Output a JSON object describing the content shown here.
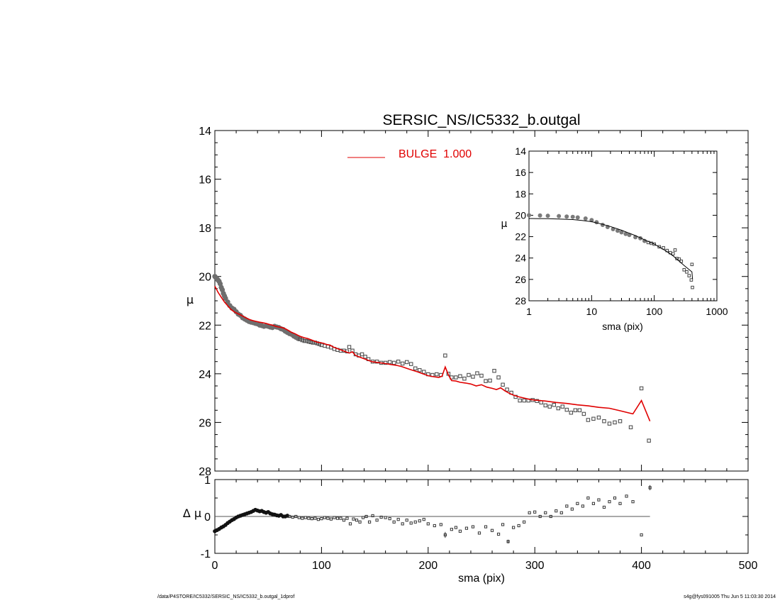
{
  "chart_data": {
    "type": "scatter",
    "title": "SERSIC_NS/IC5332_b.outgal",
    "colors": {
      "model": "#e00000",
      "data": "#505050",
      "axes": "#000000"
    },
    "main": {
      "xlabel": "sma (pix)",
      "ylabel": "μ",
      "xlim": [
        0,
        500
      ],
      "ylim": [
        28,
        14
      ],
      "y_inverted": true,
      "xticks": [
        0,
        100,
        200,
        300,
        400,
        500
      ],
      "yticks": [
        14,
        16,
        18,
        20,
        22,
        24,
        26,
        28
      ],
      "legend": {
        "label": "BULGE  1.000",
        "placement": "top-center"
      },
      "series": [
        {
          "kind": "model-line",
          "x": [
            0,
            3,
            6,
            9,
            12,
            15,
            18,
            21,
            24,
            27,
            30,
            33,
            36,
            39,
            42,
            45,
            48,
            51,
            54,
            57,
            60,
            63,
            66,
            69,
            72,
            75,
            78,
            81,
            84,
            87,
            90,
            93,
            96,
            99,
            102,
            105,
            108,
            111,
            114,
            117,
            120,
            123,
            126,
            129,
            132,
            135,
            138,
            141,
            144,
            147,
            150,
            155,
            160,
            165,
            170,
            175,
            180,
            185,
            190,
            195,
            200,
            205,
            210,
            213,
            216,
            219,
            222,
            226,
            230,
            235,
            240,
            245,
            250,
            255,
            260,
            264,
            268,
            272,
            276,
            280,
            285,
            290,
            295,
            300,
            310,
            320,
            330,
            340,
            350,
            360,
            370,
            380,
            392,
            400,
            408
          ],
          "y": [
            20.4,
            20.65,
            20.85,
            21.05,
            21.2,
            21.35,
            21.45,
            21.52,
            21.58,
            21.65,
            21.72,
            21.78,
            21.82,
            21.85,
            21.88,
            21.9,
            21.93,
            21.97,
            22.0,
            22.05,
            22.08,
            22.1,
            22.15,
            22.22,
            22.3,
            22.35,
            22.42,
            22.48,
            22.52,
            22.55,
            22.6,
            22.65,
            22.7,
            22.72,
            22.75,
            22.8,
            22.82,
            22.9,
            22.95,
            23.0,
            23.05,
            23.1,
            23.15,
            23.1,
            23.25,
            23.3,
            23.35,
            23.4,
            23.45,
            23.5,
            23.52,
            23.55,
            23.58,
            23.62,
            23.65,
            23.7,
            23.78,
            23.85,
            23.92,
            24.0,
            24.08,
            24.12,
            24.15,
            24.1,
            23.72,
            24.05,
            24.28,
            24.3,
            24.35,
            24.38,
            24.42,
            24.5,
            24.45,
            24.55,
            24.6,
            24.65,
            24.58,
            24.7,
            24.8,
            24.88,
            24.95,
            25.0,
            25.05,
            25.08,
            25.12,
            25.18,
            25.22,
            25.28,
            25.32,
            25.38,
            25.42,
            25.52,
            25.65,
            25.1,
            25.95
          ]
        },
        {
          "kind": "data-points",
          "x": [
            0,
            1,
            2,
            3,
            4,
            5,
            6,
            7,
            8,
            9,
            10,
            12,
            14,
            16,
            18,
            20,
            22,
            24,
            26,
            28,
            30,
            32,
            34,
            36,
            38,
            40,
            42,
            44,
            46,
            48,
            50,
            52,
            54,
            56,
            58,
            60,
            62,
            64,
            66,
            68,
            70,
            72,
            74,
            76,
            78,
            80,
            82,
            84,
            86,
            88,
            90,
            92,
            94,
            96,
            98,
            100,
            103,
            106,
            109,
            112,
            115,
            118,
            121,
            124,
            126,
            129,
            132,
            135,
            138,
            141,
            144,
            148,
            152,
            156,
            160,
            164,
            168,
            172,
            176,
            180,
            184,
            188,
            192,
            196,
            200,
            204,
            208,
            212,
            216,
            219,
            222,
            226,
            230,
            234,
            238,
            242,
            246,
            250,
            254,
            258,
            262,
            266,
            270,
            274,
            278,
            282,
            286,
            290,
            294,
            298,
            302,
            306,
            310,
            314,
            318,
            322,
            326,
            330,
            334,
            338,
            342,
            346,
            350,
            355,
            360,
            365,
            370,
            375,
            380,
            390,
            400,
            407
          ],
          "y": [
            20.0,
            20.05,
            20.1,
            20.15,
            20.2,
            20.3,
            20.45,
            20.55,
            20.7,
            20.8,
            20.9,
            21.05,
            21.2,
            21.3,
            21.35,
            21.45,
            21.55,
            21.6,
            21.7,
            21.75,
            21.8,
            21.85,
            21.88,
            21.9,
            21.93,
            21.95,
            22.0,
            22.02,
            22.05,
            22.03,
            22.05,
            22.08,
            22.1,
            22.05,
            22.08,
            22.1,
            22.15,
            22.18,
            22.25,
            22.3,
            22.35,
            22.38,
            22.45,
            22.5,
            22.55,
            22.58,
            22.62,
            22.65,
            22.65,
            22.68,
            22.7,
            22.72,
            22.72,
            22.75,
            22.78,
            22.82,
            22.85,
            22.88,
            22.92,
            22.98,
            23.02,
            23.05,
            23.05,
            23.08,
            22.9,
            23.05,
            23.2,
            23.25,
            23.2,
            23.3,
            23.4,
            23.5,
            23.5,
            23.55,
            23.55,
            23.52,
            23.55,
            23.5,
            23.58,
            23.52,
            23.6,
            23.78,
            23.85,
            23.92,
            24.02,
            24.05,
            24.02,
            24.05,
            23.25,
            24.0,
            24.15,
            24.15,
            24.1,
            24.2,
            24.05,
            24.12,
            23.98,
            24.08,
            24.3,
            24.28,
            23.88,
            24.15,
            24.45,
            24.65,
            24.78,
            24.95,
            25.1,
            25.1,
            25.1,
            25.08,
            25.12,
            25.18,
            25.3,
            25.35,
            25.28,
            25.42,
            25.35,
            25.48,
            25.6,
            25.5,
            25.5,
            25.65,
            25.9,
            25.85,
            25.8,
            25.95,
            26.05,
            26.0,
            25.95,
            26.2,
            24.6,
            26.75
          ]
        }
      ]
    },
    "inset": {
      "xlabel": "sma (pix)",
      "ylabel": "μ",
      "xscale": "log",
      "xlim": [
        1,
        1000
      ],
      "ylim": [
        28,
        14
      ],
      "y_inverted": true,
      "xticks": [
        1,
        10,
        100,
        1000
      ],
      "yticks": [
        14,
        16,
        18,
        20,
        22,
        24,
        26,
        28
      ],
      "model_x": [
        1,
        2,
        3,
        5,
        7,
        10,
        15,
        20,
        30,
        50,
        70,
        100,
        150,
        200,
        300,
        400,
        408
      ],
      "model_y": [
        20.3,
        20.32,
        20.35,
        20.4,
        20.48,
        20.6,
        20.85,
        21.05,
        21.4,
        21.9,
        22.3,
        22.7,
        23.3,
        23.8,
        24.7,
        25.3,
        25.95
      ],
      "points_x": [
        1,
        1.5,
        2,
        3,
        4,
        5,
        6,
        8,
        10,
        12,
        15,
        18,
        22,
        26,
        30,
        35,
        40,
        50,
        60,
        70,
        80,
        90,
        100,
        120,
        140,
        160,
        180,
        200,
        215,
        230,
        250,
        270,
        300,
        330,
        360,
        390,
        400,
        407
      ],
      "points_y": [
        20.0,
        20.02,
        20.05,
        20.08,
        20.12,
        20.15,
        20.2,
        20.3,
        20.45,
        20.65,
        20.9,
        21.1,
        21.3,
        21.45,
        21.6,
        21.75,
        21.85,
        22.05,
        22.15,
        22.4,
        22.55,
        22.62,
        22.7,
        22.95,
        23.05,
        23.3,
        23.5,
        23.6,
        23.25,
        24.05,
        24.1,
        24.3,
        25.1,
        25.3,
        25.65,
        26.05,
        24.6,
        26.75
      ]
    },
    "residual": {
      "xlabel": "sma (pix)",
      "ylabel": "Δ μ",
      "xlim": [
        0,
        500
      ],
      "ylim": [
        -1,
        1
      ],
      "xticks": [
        0,
        100,
        200,
        300,
        400,
        500
      ],
      "xticklabels": [
        "0",
        "100",
        "200",
        "300",
        "400",
        "500"
      ],
      "yticks": [
        -1,
        0,
        1
      ],
      "zero_line_x": [
        0,
        408
      ],
      "x": [
        0,
        2,
        4,
        6,
        8,
        10,
        12,
        14,
        16,
        18,
        20,
        22,
        24,
        26,
        28,
        30,
        32,
        34,
        36,
        38,
        40,
        42,
        44,
        46,
        48,
        50,
        52,
        54,
        56,
        58,
        60,
        62,
        64,
        66,
        68,
        70,
        73,
        76,
        79,
        82,
        85,
        88,
        91,
        94,
        97,
        100,
        103,
        106,
        109,
        112,
        115,
        118,
        121,
        124,
        127,
        130,
        133,
        136,
        139,
        142,
        145,
        148,
        152,
        156,
        160,
        164,
        168,
        172,
        176,
        180,
        184,
        188,
        192,
        196,
        200,
        206,
        212,
        216,
        222,
        226,
        230,
        236,
        242,
        248,
        254,
        260,
        266,
        270,
        275,
        280,
        285,
        290,
        295,
        300,
        305,
        310,
        315,
        320,
        325,
        330,
        335,
        340,
        345,
        350,
        355,
        360,
        365,
        370,
        375,
        380,
        386,
        392,
        400,
        408
      ],
      "y": [
        -0.4,
        -0.37,
        -0.34,
        -0.3,
        -0.27,
        -0.23,
        -0.18,
        -0.14,
        -0.1,
        -0.07,
        -0.03,
        0.0,
        0.02,
        0.04,
        0.06,
        0.08,
        0.1,
        0.12,
        0.15,
        0.18,
        0.16,
        0.14,
        0.15,
        0.12,
        0.1,
        0.12,
        0.08,
        0.06,
        0.05,
        0.03,
        0.02,
        0.04,
        0.0,
        0.0,
        0.02,
        0.0,
        -0.02,
        0.0,
        -0.03,
        -0.05,
        -0.03,
        -0.05,
        -0.06,
        -0.05,
        -0.08,
        -0.06,
        -0.03,
        -0.05,
        -0.07,
        -0.03,
        -0.05,
        -0.05,
        -0.1,
        -0.05,
        -0.2,
        -0.07,
        -0.1,
        -0.15,
        -0.03,
        0.0,
        -0.15,
        0.02,
        -0.1,
        -0.02,
        -0.03,
        -0.06,
        -0.15,
        -0.08,
        -0.2,
        -0.1,
        -0.18,
        -0.15,
        -0.12,
        -0.08,
        -0.2,
        -0.25,
        -0.22,
        -0.5,
        -0.35,
        -0.3,
        -0.4,
        -0.32,
        -0.28,
        -0.45,
        -0.28,
        -0.38,
        -0.48,
        -0.22,
        -0.68,
        -0.3,
        -0.25,
        -0.15,
        0.1,
        0.12,
        0.0,
        0.1,
        0.0,
        0.15,
        0.1,
        0.28,
        0.2,
        0.35,
        0.28,
        0.5,
        0.35,
        0.45,
        0.25,
        0.4,
        0.5,
        0.35,
        0.55,
        0.4,
        -0.5,
        0.78
      ],
      "err": [
        0,
        0,
        0,
        0,
        0,
        0,
        0,
        0,
        0,
        0,
        0,
        0,
        0,
        0,
        0,
        0,
        0,
        0,
        0,
        0,
        0,
        0,
        0,
        0,
        0,
        0,
        0,
        0,
        0,
        0,
        0,
        0,
        0,
        0,
        0,
        0,
        0,
        0,
        0,
        0,
        0,
        0,
        0,
        0,
        0,
        0,
        0,
        0,
        0,
        0,
        0,
        0,
        0,
        0,
        0,
        0,
        0,
        0,
        0,
        0,
        0,
        0,
        0,
        0,
        0,
        0,
        0,
        0,
        0,
        0,
        0,
        0,
        0,
        0,
        0,
        0,
        0,
        0.08,
        0,
        0,
        0,
        0,
        0,
        0,
        0,
        0,
        0,
        0,
        0.05,
        0,
        0,
        0,
        0,
        0,
        0,
        0,
        0,
        0,
        0,
        0,
        0,
        0,
        0,
        0,
        0,
        0,
        0,
        0,
        0,
        0,
        0,
        0,
        0,
        0.07
      ]
    }
  },
  "footer": {
    "left": "/data/P4STORE/IC5332/SERSIC_NS/IC5332_b.outgal_1dprof",
    "right": "s4g@fys091005  Thu Jun  5 11:03:30 2014"
  }
}
